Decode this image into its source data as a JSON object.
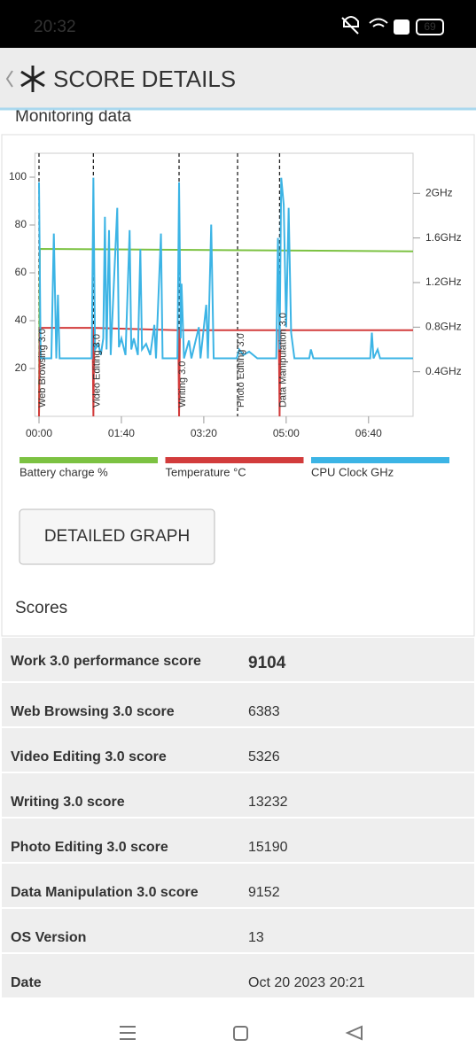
{
  "status_bar": {
    "time": "20:32",
    "battery": "69"
  },
  "header": {
    "title": "SCORE DETAILS"
  },
  "section_title": "Monitoring data",
  "chart_data": {
    "type": "line",
    "xlim": [
      -5,
      454
    ],
    "xticks": [
      {
        "value": 0,
        "label": "00:00"
      },
      {
        "value": 100,
        "label": "01:40"
      },
      {
        "value": 200,
        "label": "03:20"
      },
      {
        "value": 300,
        "label": "05:00"
      },
      {
        "value": 400,
        "label": "06:40"
      }
    ],
    "ylim": [
      0,
      110
    ],
    "yticks": [
      20,
      40,
      60,
      80,
      100
    ],
    "y2lim": [
      0,
      2.36
    ],
    "y2ticks": [
      {
        "value": 0.4,
        "label": "0.4GHz"
      },
      {
        "value": 0.8,
        "label": "0.8GHz"
      },
      {
        "value": 1.2,
        "label": "1.2GHz"
      },
      {
        "value": 1.6,
        "label": "1.6GHz"
      },
      {
        "value": 2,
        "label": "2GHz"
      }
    ],
    "annotations": [
      {
        "label": "Web Browsing 3.0",
        "x": 0
      },
      {
        "label": "Video Editing 3.0",
        "x": 66
      },
      {
        "label": "Writing 3.0",
        "x": 170
      },
      {
        "label": "Photo Editing 3.0",
        "x": 241
      },
      {
        "label": "Data Manipulation 3.0",
        "x": 292
      }
    ],
    "series": [
      {
        "name": "Battery charge %",
        "color": "#7cc242",
        "x": [
          0,
          1,
          454
        ],
        "values": [
          0,
          70,
          69
        ]
      },
      {
        "name": "Temperature °C",
        "color": "#d23c3c",
        "x": [
          0,
          1,
          65,
          66,
          67,
          169,
          170,
          171,
          291,
          292,
          293,
          454
        ],
        "values": [
          0,
          37,
          37,
          0,
          37,
          36,
          0,
          36,
          36,
          0,
          36,
          36
        ]
      },
      {
        "name": "CPU Clock GHz",
        "color": "#3cb4e5",
        "axis": "y2",
        "x": [
          0,
          2,
          15,
          18,
          21,
          23,
          25,
          64,
          66,
          68,
          72,
          75,
          78,
          80,
          82,
          85,
          87,
          95,
          97,
          100,
          105,
          110,
          112,
          115,
          120,
          123,
          125,
          130,
          135,
          140,
          142,
          148,
          150,
          168,
          170,
          172,
          173,
          176,
          182,
          185,
          194,
          196,
          203,
          205,
          209,
          212,
          240,
          243,
          248,
          255,
          265,
          288,
          290,
          292,
          294,
          297,
          300,
          303,
          306,
          310,
          328,
          330,
          333,
          402,
          404,
          406,
          411,
          414,
          454
        ],
        "values": [
          2.1,
          0.52,
          0.52,
          1.64,
          0.52,
          1.09,
          0.52,
          0.52,
          2.14,
          0.6,
          0.65,
          0.55,
          0.7,
          1.79,
          0.6,
          1.67,
          0.55,
          1.87,
          0.62,
          0.7,
          0.55,
          1.67,
          0.6,
          0.7,
          0.55,
          1.5,
          0.6,
          0.65,
          0.55,
          0.82,
          0.52,
          1.64,
          0.52,
          0.52,
          2.1,
          0.7,
          1.19,
          0.52,
          0.68,
          0.52,
          0.8,
          0.52,
          1.0,
          0.52,
          1.72,
          0.52,
          0.52,
          0.6,
          0.55,
          0.58,
          0.52,
          0.52,
          1.6,
          0.6,
          2.14,
          1.9,
          0.8,
          1.87,
          0.75,
          0.52,
          0.52,
          0.6,
          0.52,
          0.52,
          0.75,
          0.52,
          0.6,
          0.52,
          0.52
        ]
      }
    ]
  },
  "button": "DETAILED GRAPH",
  "scores": {
    "title": "Scores",
    "rows": [
      [
        "Work 3.0 performance score",
        "9104"
      ],
      [
        "Web Browsing 3.0 score",
        "6383"
      ],
      [
        "Video Editing 3.0 score",
        "5326"
      ],
      [
        "Writing 3.0 score",
        "13232"
      ],
      [
        "Photo Editing 3.0 score",
        "15190"
      ],
      [
        "Data Manipulation 3.0 score",
        "9152"
      ],
      [
        "OS Version",
        "13"
      ],
      [
        "Date",
        "Oct 20 2023 20:21"
      ]
    ]
  }
}
